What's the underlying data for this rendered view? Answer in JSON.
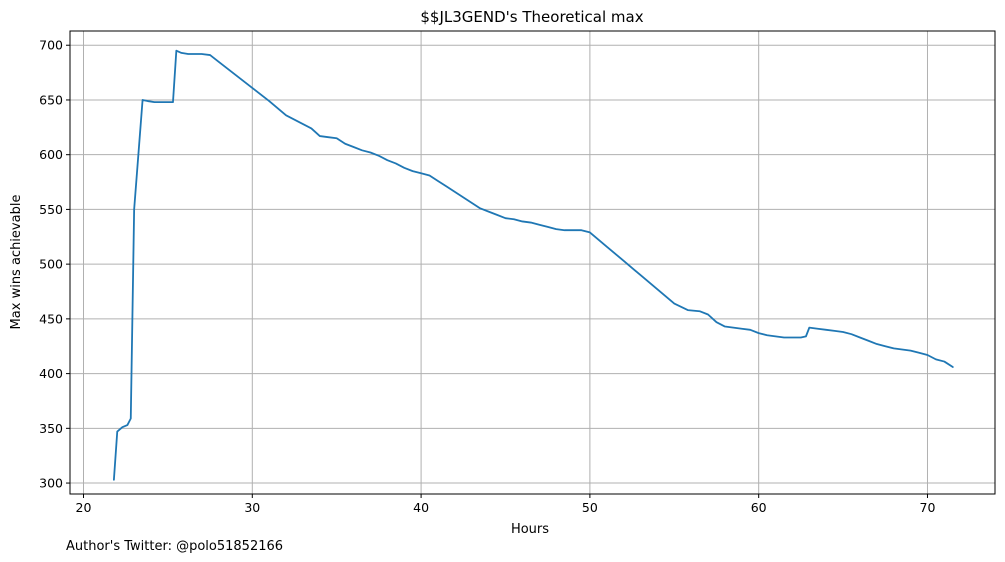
{
  "chart_data": {
    "type": "line",
    "title": "$$JL3GEND's Theoretical max",
    "xlabel": "Hours",
    "ylabel": "Max wins achievable",
    "xlim": [
      19.2,
      74.0
    ],
    "ylim": [
      290,
      713
    ],
    "xticks": [
      20,
      30,
      40,
      50,
      60,
      70
    ],
    "yticks": [
      300,
      350,
      400,
      450,
      500,
      550,
      600,
      650,
      700
    ],
    "grid": true,
    "line_color": "#1f77b4",
    "series": [
      {
        "x": [
          21.8,
          22.0,
          22.3,
          22.6,
          22.8,
          23.0,
          23.3,
          23.5,
          23.8,
          24.2,
          24.6,
          25.0,
          25.3,
          25.5,
          25.8,
          26.2,
          26.6,
          27.0,
          27.5,
          28.0,
          29.0,
          30.0,
          31.0,
          32.0,
          33.0,
          33.5,
          34.0,
          34.5,
          35.0,
          35.5,
          36.0,
          36.5,
          37.0,
          37.5,
          38.0,
          38.5,
          39.0,
          39.5,
          40.0,
          40.5,
          41.0,
          41.5,
          42.0,
          42.5,
          43.0,
          43.5,
          44.0,
          44.5,
          45.0,
          45.5,
          46.0,
          46.5,
          47.0,
          47.5,
          48.0,
          48.5,
          49.0,
          49.5,
          50.0,
          51.0,
          52.0,
          53.0,
          54.0,
          55.0,
          55.8,
          56.5,
          57.0,
          57.5,
          58.0,
          58.5,
          59.0,
          59.5,
          60.0,
          60.5,
          61.0,
          61.5,
          62.0,
          62.5,
          62.8,
          63.0,
          63.5,
          64.0,
          64.5,
          65.0,
          65.5,
          66.0,
          66.5,
          67.0,
          67.5,
          68.0,
          68.5,
          69.0,
          69.5,
          70.0,
          70.5,
          71.0,
          71.5
        ],
        "y": [
          303,
          347,
          351,
          353,
          359,
          550,
          610,
          650,
          649,
          648,
          648,
          648,
          648,
          695,
          693,
          692,
          692,
          692,
          691,
          685,
          673,
          661,
          649,
          636,
          628,
          624,
          617,
          616,
          615,
          610,
          607,
          604,
          602,
          599,
          595,
          592,
          588,
          585,
          583,
          581,
          576,
          571,
          566,
          561,
          556,
          551,
          548,
          545,
          542,
          541,
          539,
          538,
          536,
          534,
          532,
          531,
          531,
          531,
          529,
          516,
          503,
          490,
          477,
          464,
          458,
          457,
          454,
          447,
          443,
          442,
          441,
          440,
          437,
          435,
          434,
          433,
          433,
          433,
          434,
          442,
          441,
          440,
          439,
          438,
          436,
          433,
          430,
          427,
          425,
          423,
          422,
          421,
          419,
          417,
          413,
          411,
          406
        ]
      }
    ]
  },
  "footer": {
    "author": "Author's Twitter: @polo51852166"
  }
}
